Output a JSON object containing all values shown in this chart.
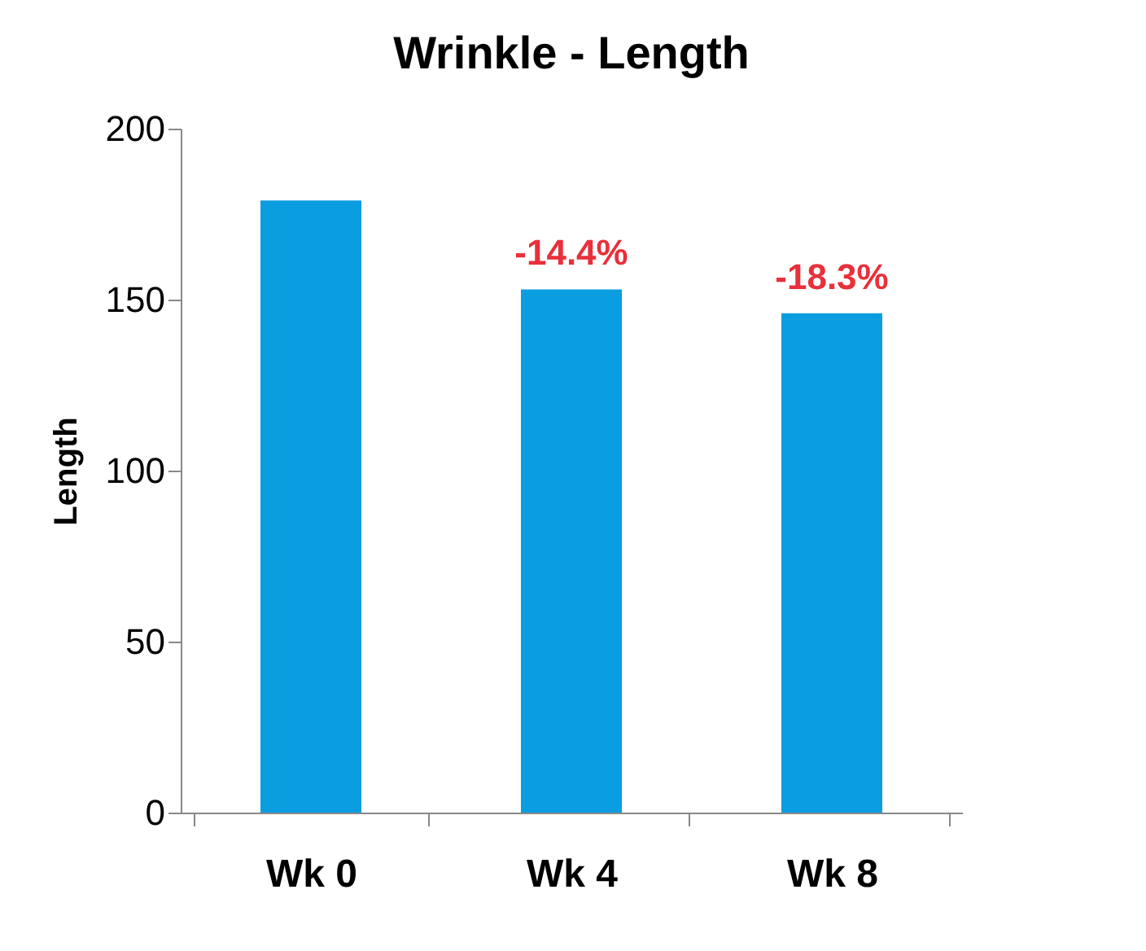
{
  "chart_data": {
    "type": "bar",
    "title": "Wrinkle - Length",
    "ylabel": "Length",
    "categories": [
      "Wk 0",
      "Wk 4",
      "Wk 8"
    ],
    "values": [
      179,
      153,
      146
    ],
    "annotations": [
      {
        "text": "-14.4%",
        "x": "Wk 4",
        "y": 153
      },
      {
        "text": "-18.3%",
        "x": "Wk 8",
        "y": 146
      }
    ],
    "color": "#0a9de0",
    "ylim": [
      0,
      200
    ],
    "yticks": [
      0,
      50,
      100,
      150,
      200
    ],
    "grid": false
  }
}
